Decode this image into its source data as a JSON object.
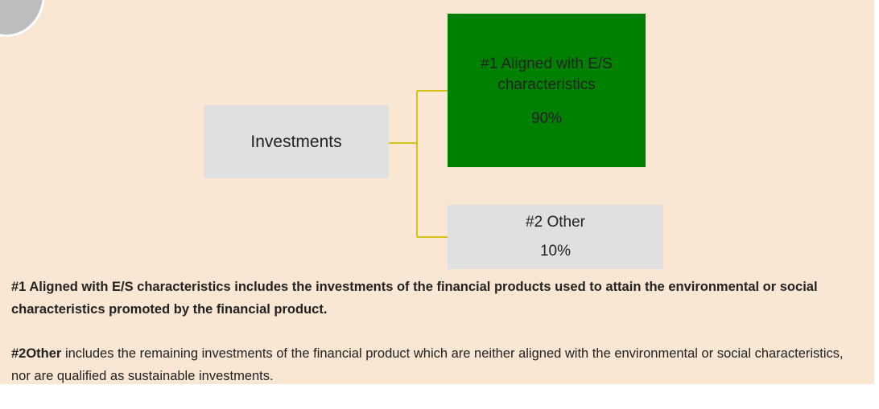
{
  "nodes": [
    {
      "label": "Investments"
    },
    {
      "label": "#1 Aligned with E/S characteristics",
      "share": "90%"
    },
    {
      "label": "#2 Other",
      "share": "10%"
    }
  ],
  "notes": [
    {
      "text": "#1 Aligned with E/S characteristics includes the investments of the financial products used to attain the environmental or social characteristics promoted by the financial product."
    },
    {
      "bold": "#2Other",
      "text": " includes the remaining investments of the financial product which are neither aligned with the environmental or social characteristics, nor are qualified as sustainable investments."
    }
  ]
}
